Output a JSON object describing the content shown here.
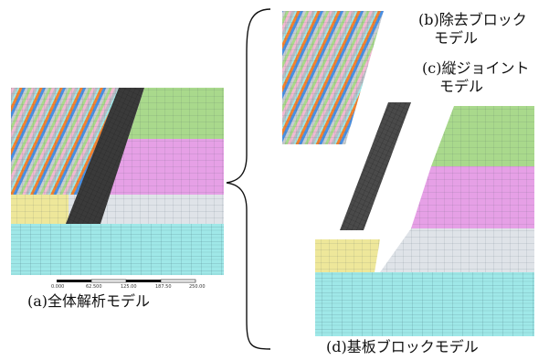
{
  "labels": {
    "full_model": "(a)全体解析モデル",
    "removed_block_line1": "(b)除去ブロック",
    "removed_block_line2": "モデル",
    "joint_line1": "(c)縦ジョイント",
    "joint_line2": "モデル",
    "base_block": "(d)基板ブロックモデル"
  },
  "scale_ticks": [
    "0.000",
    "62.500",
    "125.00",
    "187.50",
    "250.00"
  ],
  "colors": {
    "orange": "#f4822e",
    "blue": "#4a90e2",
    "grey": "#b9bdc4",
    "pink_light": "#f2b8d2",
    "green": "#a9d98c",
    "magenta": "#e6a0e6",
    "yellow": "#eee79a",
    "cyan": "#9fe8e8",
    "dark": "#3a3a3a",
    "mesh_line": "#5a6a7a"
  }
}
